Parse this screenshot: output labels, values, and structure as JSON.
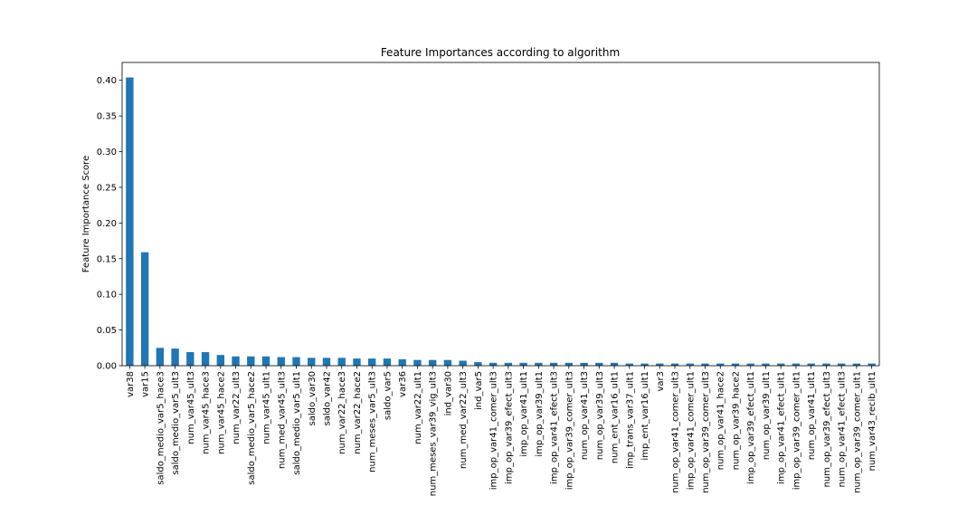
{
  "chart_data": {
    "type": "bar",
    "title": "Feature Importances according to algorithm",
    "xlabel": "",
    "ylabel": "Feature Importance Score",
    "ylim": [
      0,
      0.425
    ],
    "yticks": [
      0.0,
      0.05,
      0.1,
      0.15,
      0.2,
      0.25,
      0.3,
      0.35,
      0.4
    ],
    "ytick_labels": [
      "0.00",
      "0.05",
      "0.10",
      "0.15",
      "0.20",
      "0.25",
      "0.30",
      "0.35",
      "0.40"
    ],
    "grid": false,
    "legend": "none",
    "bar_color": "#1f77b4",
    "categories": [
      "var38",
      "var15",
      "saldo_medio_var5_hace3",
      "saldo_medio_var5_ult3",
      "num_var45_ult3",
      "num_var45_hace3",
      "num_var45_hace2",
      "num_var22_ult3",
      "saldo_medio_var5_hace2",
      "num_var45_ult1",
      "num_med_var45_ult3",
      "saldo_medio_var5_ult1",
      "saldo_var30",
      "saldo_var42",
      "num_var22_hace3",
      "num_var22_hace2",
      "num_meses_var5_ult3",
      "saldo_var5",
      "var36",
      "num_var22_ult1",
      "num_meses_var39_vig_ult3",
      "ind_var30",
      "num_med_var22_ult3",
      "ind_var5",
      "imp_op_var41_comer_ult3",
      "imp_op_var39_efect_ult3",
      "imp_op_var41_ult1",
      "imp_op_var39_ult1",
      "imp_op_var41_efect_ult3",
      "imp_op_var39_comer_ult3",
      "num_op_var41_ult3",
      "num_op_var39_ult3",
      "num_ent_var16_ult1",
      "imp_trans_var37_ult1",
      "imp_ent_var16_ult1",
      "var3",
      "num_op_var41_comer_ult3",
      "imp_op_var41_comer_ult1",
      "num_op_var39_comer_ult3",
      "num_op_var41_hace2",
      "num_op_var39_hace2",
      "imp_op_var39_efect_ult1",
      "num_op_var39_ult1",
      "imp_op_var41_efect_ult1",
      "imp_op_var39_comer_ult1",
      "num_op_var41_ult1",
      "num_op_var39_efect_ult3",
      "num_op_var41_efect_ult3",
      "num_op_var39_comer_ult1",
      "num_var43_recib_ult1"
    ],
    "values": [
      0.404,
      0.159,
      0.025,
      0.024,
      0.019,
      0.019,
      0.015,
      0.013,
      0.013,
      0.013,
      0.012,
      0.012,
      0.011,
      0.011,
      0.011,
      0.01,
      0.01,
      0.01,
      0.009,
      0.008,
      0.008,
      0.008,
      0.007,
      0.005,
      0.004,
      0.004,
      0.004,
      0.004,
      0.004,
      0.004,
      0.004,
      0.004,
      0.004,
      0.003,
      0.003,
      0.003,
      0.003,
      0.003,
      0.003,
      0.003,
      0.003,
      0.003,
      0.003,
      0.003,
      0.003,
      0.003,
      0.003,
      0.003,
      0.003,
      0.003
    ]
  }
}
